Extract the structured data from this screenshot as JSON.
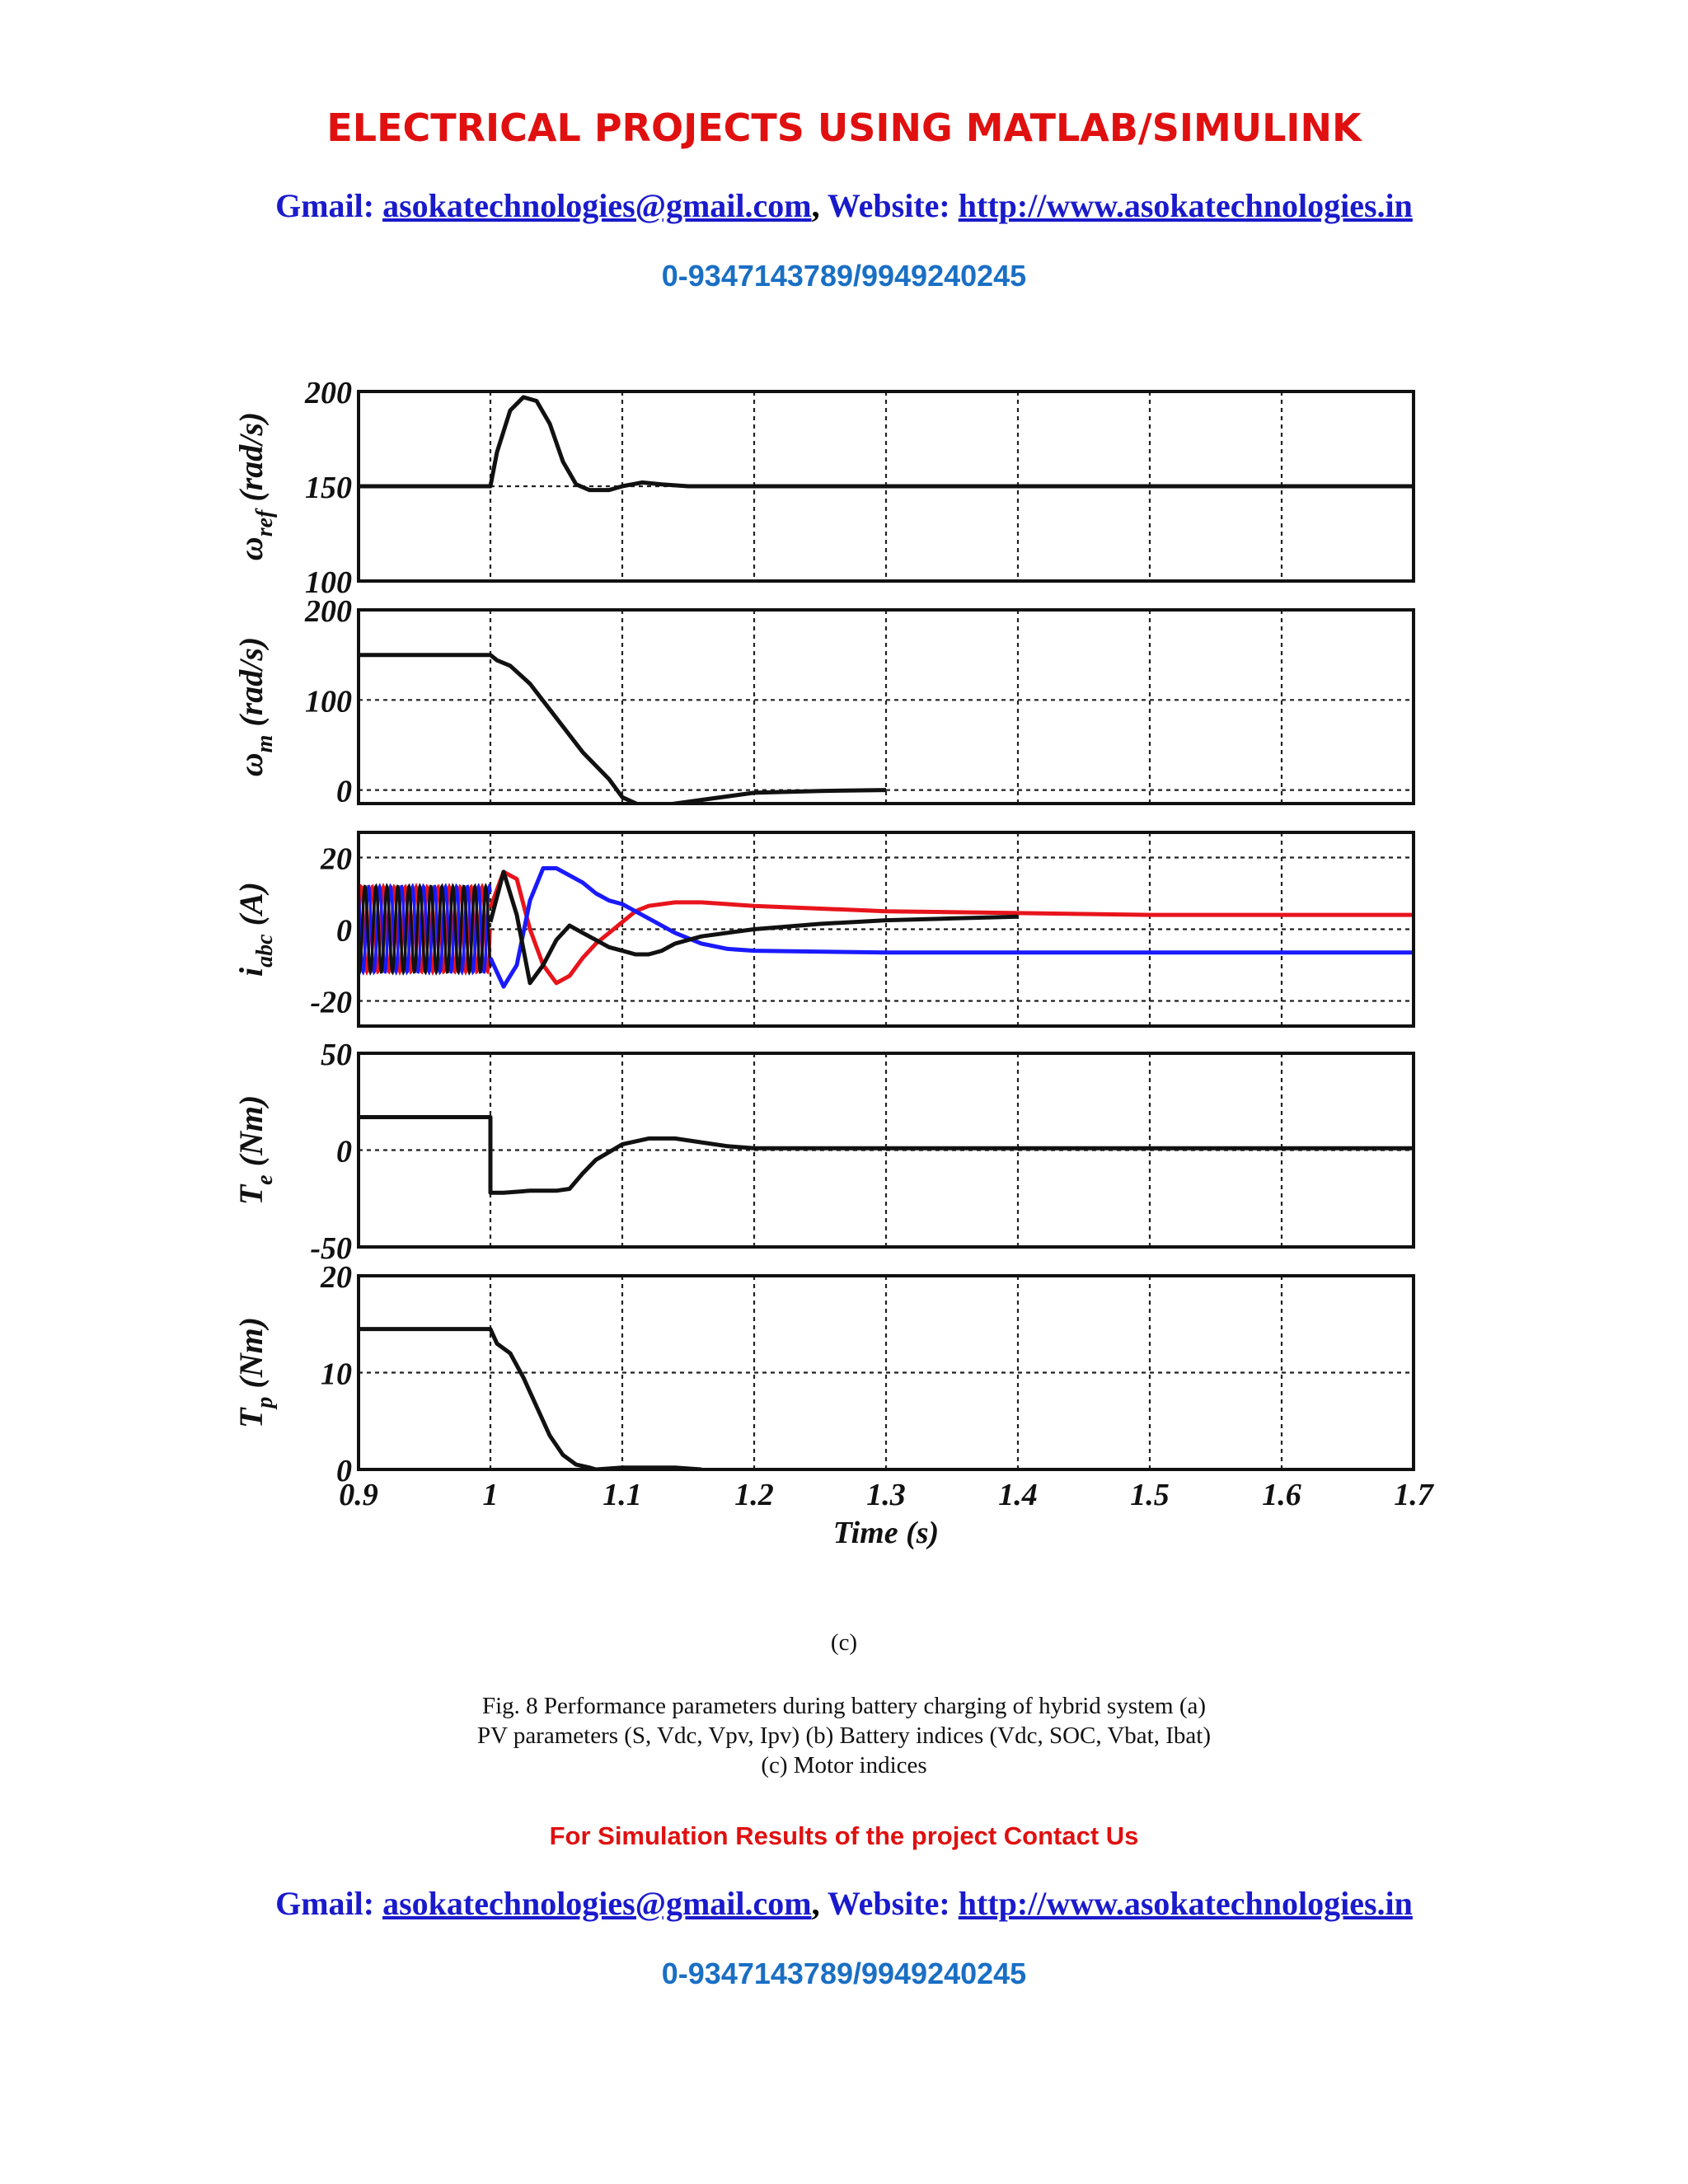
{
  "header": {
    "title": "ELECTRICAL PROJECTS USING MATLAB/SIMULINK",
    "gmail_label": "Gmail:",
    "email": "asokatechnologies@gmail.com",
    "separator": ",",
    "website_label": "Website:",
    "website": "http://www.asokatechnologies.in",
    "phone": "0-9347143789/9949240245"
  },
  "figure": {
    "subfig_label": "(c)",
    "caption_line1": "Fig. 8 Performance parameters during battery charging of hybrid system (a)",
    "caption_line2": "PV parameters (S, Vdc, Vpv, Ipv) (b) Battery indices (Vdc, SOC, Vbat, Ibat)",
    "caption_line3": "(c) Motor indices"
  },
  "footer": {
    "cta": "For Simulation Results of the project Contact Us",
    "gmail_label": "Gmail:",
    "email": "asokatechnologies@gmail.com",
    "separator": ",",
    "website_label": "Website:",
    "website": "http://www.asokatechnologies.in",
    "phone": "0-9347143789/9949240245"
  },
  "colors": {
    "red": "#e01010",
    "blue": "#1a1acc",
    "phone_blue": "#1a6fc4",
    "series_black": "#111111",
    "series_red": "#e8141c",
    "series_blue": "#1a1aff"
  },
  "chart_data": {
    "type": "line",
    "xlabel": "Time (s)",
    "xlim": [
      0.9,
      1.7
    ],
    "xticks": [
      "0.9",
      "1",
      "1.1",
      "1.2",
      "1.3",
      "1.4",
      "1.5",
      "1.6",
      "1.7"
    ],
    "grid": true,
    "panels": [
      {
        "id": "wref",
        "ylabel_main": "ω",
        "ylabel_sub": "ref",
        "ylabel_unit": " (rad/s)",
        "ylim": [
          100,
          200
        ],
        "yticks": [
          "100",
          "150",
          "200"
        ],
        "series": [
          {
            "color": "series_black",
            "x": [
              0.9,
              0.99,
              1.0,
              1.005,
              1.015,
              1.025,
              1.035,
              1.045,
              1.055,
              1.065,
              1.075,
              1.09,
              1.1,
              1.115,
              1.13,
              1.15,
              1.2,
              1.3,
              1.4,
              1.5,
              1.6,
              1.7
            ],
            "y": [
              150,
              150,
              150,
              168,
              190,
              197,
              195,
              183,
              163,
              151,
              148,
              148,
              150,
              152,
              151,
              150,
              150,
              150,
              150,
              150,
              150,
              150
            ]
          }
        ]
      },
      {
        "id": "wm",
        "ylabel_main": "ω",
        "ylabel_sub": "m",
        "ylabel_unit": " (rad/s)",
        "ylim": [
          -15,
          200
        ],
        "yticks": [
          "0",
          "100",
          "200"
        ],
        "tickvals": [
          0,
          100,
          200
        ],
        "series": [
          {
            "color": "series_black",
            "x": [
              0.9,
              1.0,
              1.005,
              1.015,
              1.03,
              1.05,
              1.07,
              1.09,
              1.1,
              1.115,
              1.13,
              1.16,
              1.2,
              1.25,
              1.3
            ],
            "y": [
              150,
              150,
              144,
              138,
              118,
              80,
              42,
              12,
              -8,
              -18,
              -17,
              -11,
              -3,
              -1,
              0
            ]
          }
        ]
      },
      {
        "id": "iabc",
        "ylabel_main": "i",
        "ylabel_sub": "abc",
        "ylabel_unit": " (A)",
        "ylim": [
          -27,
          27
        ],
        "yticks": [
          "-20",
          "0",
          "20"
        ],
        "tickvals": [
          -20,
          0,
          20
        ],
        "series": [
          {
            "color": "series_red",
            "x": [
              1.0,
              1.01,
              1.02,
              1.03,
              1.04,
              1.05,
              1.06,
              1.07,
              1.08,
              1.09,
              1.1,
              1.11,
              1.12,
              1.14,
              1.16,
              1.2,
              1.3,
              1.4,
              1.5,
              1.6,
              1.7
            ],
            "y": [
              6,
              16,
              14,
              0,
              -10,
              -15,
              -13,
              -8,
              -4,
              -1,
              2,
              5,
              6.5,
              7.5,
              7.5,
              6.5,
              5,
              4.5,
              4,
              4,
              4
            ]
          },
          {
            "color": "series_blue",
            "x": [
              1.0,
              1.01,
              1.02,
              1.03,
              1.04,
              1.05,
              1.06,
              1.07,
              1.08,
              1.09,
              1.1,
              1.12,
              1.14,
              1.16,
              1.18,
              1.2,
              1.3,
              1.4,
              1.5,
              1.6,
              1.7
            ],
            "y": [
              -8,
              -16,
              -10,
              8,
              17,
              17,
              15,
              13,
              10,
              8,
              7,
              3,
              -1,
              -4,
              -5.5,
              -6,
              -6.5,
              -6.5,
              -6.5,
              -6.5,
              -6.5
            ]
          },
          {
            "color": "series_black",
            "x": [
              1.0,
              1.01,
              1.02,
              1.03,
              1.04,
              1.05,
              1.06,
              1.07,
              1.08,
              1.09,
              1.1,
              1.11,
              1.12,
              1.13,
              1.14,
              1.16,
              1.2,
              1.25,
              1.3,
              1.35,
              1.4
            ],
            "y": [
              2,
              16,
              4,
              -15,
              -10,
              -3,
              1,
              -1,
              -3,
              -5,
              -6,
              -7,
              -7,
              -6,
              -4,
              -2,
              0,
              1.5,
              2.5,
              3,
              3.5
            ]
          }
        ],
        "oscillation": {
          "x_range": [
            0.9,
            1.0
          ],
          "cycles": 12,
          "amplitude": 12
        }
      },
      {
        "id": "te",
        "ylabel_main": "T",
        "ylabel_sub": "e",
        "ylabel_unit": " (Nm)",
        "ylim": [
          -50,
          50
        ],
        "yticks": [
          "-50",
          "0",
          "50"
        ],
        "series": [
          {
            "color": "series_black",
            "x": [
              0.9,
              1.0,
              1.0,
              1.01,
              1.03,
              1.05,
              1.06,
              1.07,
              1.08,
              1.1,
              1.12,
              1.14,
              1.16,
              1.18,
              1.2,
              1.3,
              1.4,
              1.5,
              1.6,
              1.7
            ],
            "y": [
              17,
              17,
              -22,
              -22,
              -21,
              -21,
              -20,
              -12,
              -5,
              3,
              6,
              6,
              4,
              2,
              1,
              1,
              1,
              1,
              1,
              1
            ]
          }
        ]
      },
      {
        "id": "tp",
        "ylabel_main": "T",
        "ylabel_sub": "p",
        "ylabel_unit": " (Nm)",
        "ylim": [
          0,
          20
        ],
        "yticks": [
          "0",
          "10",
          "20"
        ],
        "series": [
          {
            "color": "series_black",
            "x": [
              0.9,
              1.0,
              1.005,
              1.015,
              1.025,
              1.035,
              1.045,
              1.055,
              1.065,
              1.075,
              1.08,
              1.1,
              1.14,
              1.16
            ],
            "y": [
              14.5,
              14.5,
              13,
              12,
              9.5,
              6.5,
              3.5,
              1.5,
              0.5,
              0.2,
              0,
              0.2,
              0.2,
              0
            ]
          }
        ]
      }
    ]
  }
}
